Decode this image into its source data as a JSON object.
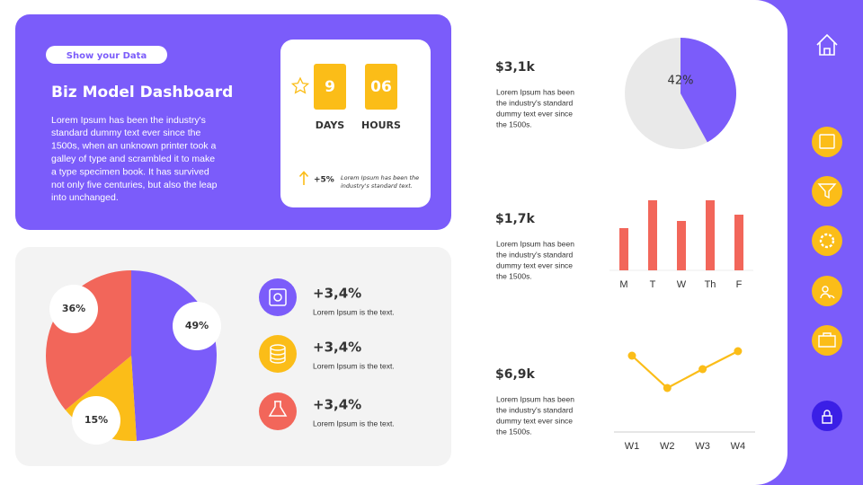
{
  "header": {
    "badge": "Show your  Data",
    "title": "Biz Model Dashboard",
    "body": [
      "Lorem Ipsum has been the industry's",
      "standard dummy text ever since the",
      "1500s, when an unknown printer took a",
      "galley of type and scrambled it to make",
      "a type specimen book. It has survived",
      "not only five centuries, but also the leap",
      "into unchanged."
    ]
  },
  "countdown": {
    "units": [
      {
        "value": "9",
        "label": "DAYS"
      },
      {
        "value": "06",
        "label": "HOURS"
      }
    ],
    "change": "+5%",
    "note": [
      "Lorem Ipsum has been the",
      "industry's standard text."
    ]
  },
  "stats": [
    {
      "value": "+3,4%",
      "text": "Lorem Ipsum is the text."
    },
    {
      "value": "+3,4%",
      "text": "Lorem Ipsum is the text."
    },
    {
      "value": "+3,4%",
      "text": "Lorem Ipsum is the text."
    }
  ],
  "kpis": [
    {
      "value": "$3,1k",
      "text": [
        "Lorem Ipsum has been",
        "the industry's standard",
        "dummy text ever since",
        "the 1500s."
      ]
    },
    {
      "value": "$1,7k",
      "text": [
        "Lorem Ipsum has been",
        "the industry's standard",
        "dummy text ever since",
        "the 1500s."
      ]
    },
    {
      "value": "$6,9k",
      "text": [
        "Lorem Ipsum has been",
        "the industry's standard",
        "dummy text ever since",
        "the 1500s."
      ]
    }
  ],
  "chart_data": [
    {
      "type": "pie",
      "values": [
        49,
        15,
        36
      ],
      "value_labels": [
        "49%",
        "15%",
        "36%"
      ],
      "colors": [
        "#7b5cfa",
        "#fbbd18",
        "#f2665a"
      ]
    },
    {
      "type": "pie",
      "values": [
        42
      ],
      "value_labels": [
        "42%"
      ],
      "colors": [
        "#7b5cfa"
      ]
    },
    {
      "type": "bar",
      "categories": [
        "M",
        "T",
        "W",
        "Th",
        "F"
      ],
      "values": [
        47,
        78,
        55,
        78,
        62
      ],
      "color": "#f2665a",
      "ylim": [
        0,
        100
      ]
    },
    {
      "type": "line",
      "categories": [
        "W1",
        "W2",
        "W3",
        "W4"
      ],
      "values": [
        85,
        49,
        70,
        90
      ],
      "color": "#fbbd18",
      "ylim": [
        0,
        100
      ]
    }
  ]
}
